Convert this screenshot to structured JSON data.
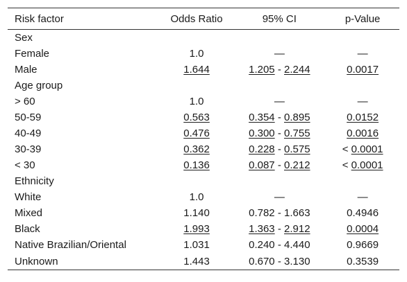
{
  "headers": [
    "Risk factor",
    "Odds Ratio",
    "95% CI",
    "p-Value"
  ],
  "rows": [
    {
      "label": "Sex",
      "group": true
    },
    {
      "label": "Female",
      "or": "1.0",
      "ci_low": "—",
      "ci_high": "",
      "p_prefix": "",
      "p": "—",
      "u": false
    },
    {
      "label": "Male",
      "or": "1.644",
      "ci_low": "1.205",
      "ci_high": "2.244",
      "p_prefix": "",
      "p": "0.0017",
      "u": true
    },
    {
      "label": "Age group",
      "group": true
    },
    {
      "label": "> 60",
      "or": "1.0",
      "ci_low": "—",
      "ci_high": "",
      "p_prefix": "",
      "p": "—",
      "u": false
    },
    {
      "label": "50-59",
      "or": "0.563",
      "ci_low": "0.354",
      "ci_high": "0.895",
      "p_prefix": "",
      "p": "0.0152",
      "u": true
    },
    {
      "label": "40-49",
      "or": "0.476",
      "ci_low": "0.300",
      "ci_high": "0.755",
      "p_prefix": "",
      "p": "0.0016",
      "u": true
    },
    {
      "label": "30-39",
      "or": "0.362",
      "ci_low": "0.228",
      "ci_high": "0.575",
      "p_prefix": "< ",
      "p": "0.0001",
      "u": true
    },
    {
      "label": "< 30",
      "or": "0.136",
      "ci_low": "0.087",
      "ci_high": "0.212",
      "p_prefix": "< ",
      "p": "0.0001",
      "u": true
    },
    {
      "label": "Ethnicity",
      "group": true
    },
    {
      "label": "White",
      "or": "1.0",
      "ci_low": "—",
      "ci_high": "",
      "p_prefix": "",
      "p": "—",
      "u": false
    },
    {
      "label": "Mixed",
      "or": "1.140",
      "ci_low": "0.782",
      "ci_high": "1.663",
      "p_prefix": "",
      "p": "0.4946",
      "u": false
    },
    {
      "label": "Black",
      "or": "1.993",
      "ci_low": "1.363",
      "ci_high": "2.912",
      "p_prefix": "",
      "p": "0.0004",
      "u": true
    },
    {
      "label": "Native Brazilian/Oriental",
      "or": "1.031",
      "ci_low": "0.240",
      "ci_high": "4.440",
      "p_prefix": "",
      "p": "0.9669",
      "u": false
    },
    {
      "label": "Unknown",
      "or": "1.443",
      "ci_low": "0.670",
      "ci_high": "3.130",
      "p_prefix": "",
      "p": "0.3539",
      "u": false
    }
  ]
}
